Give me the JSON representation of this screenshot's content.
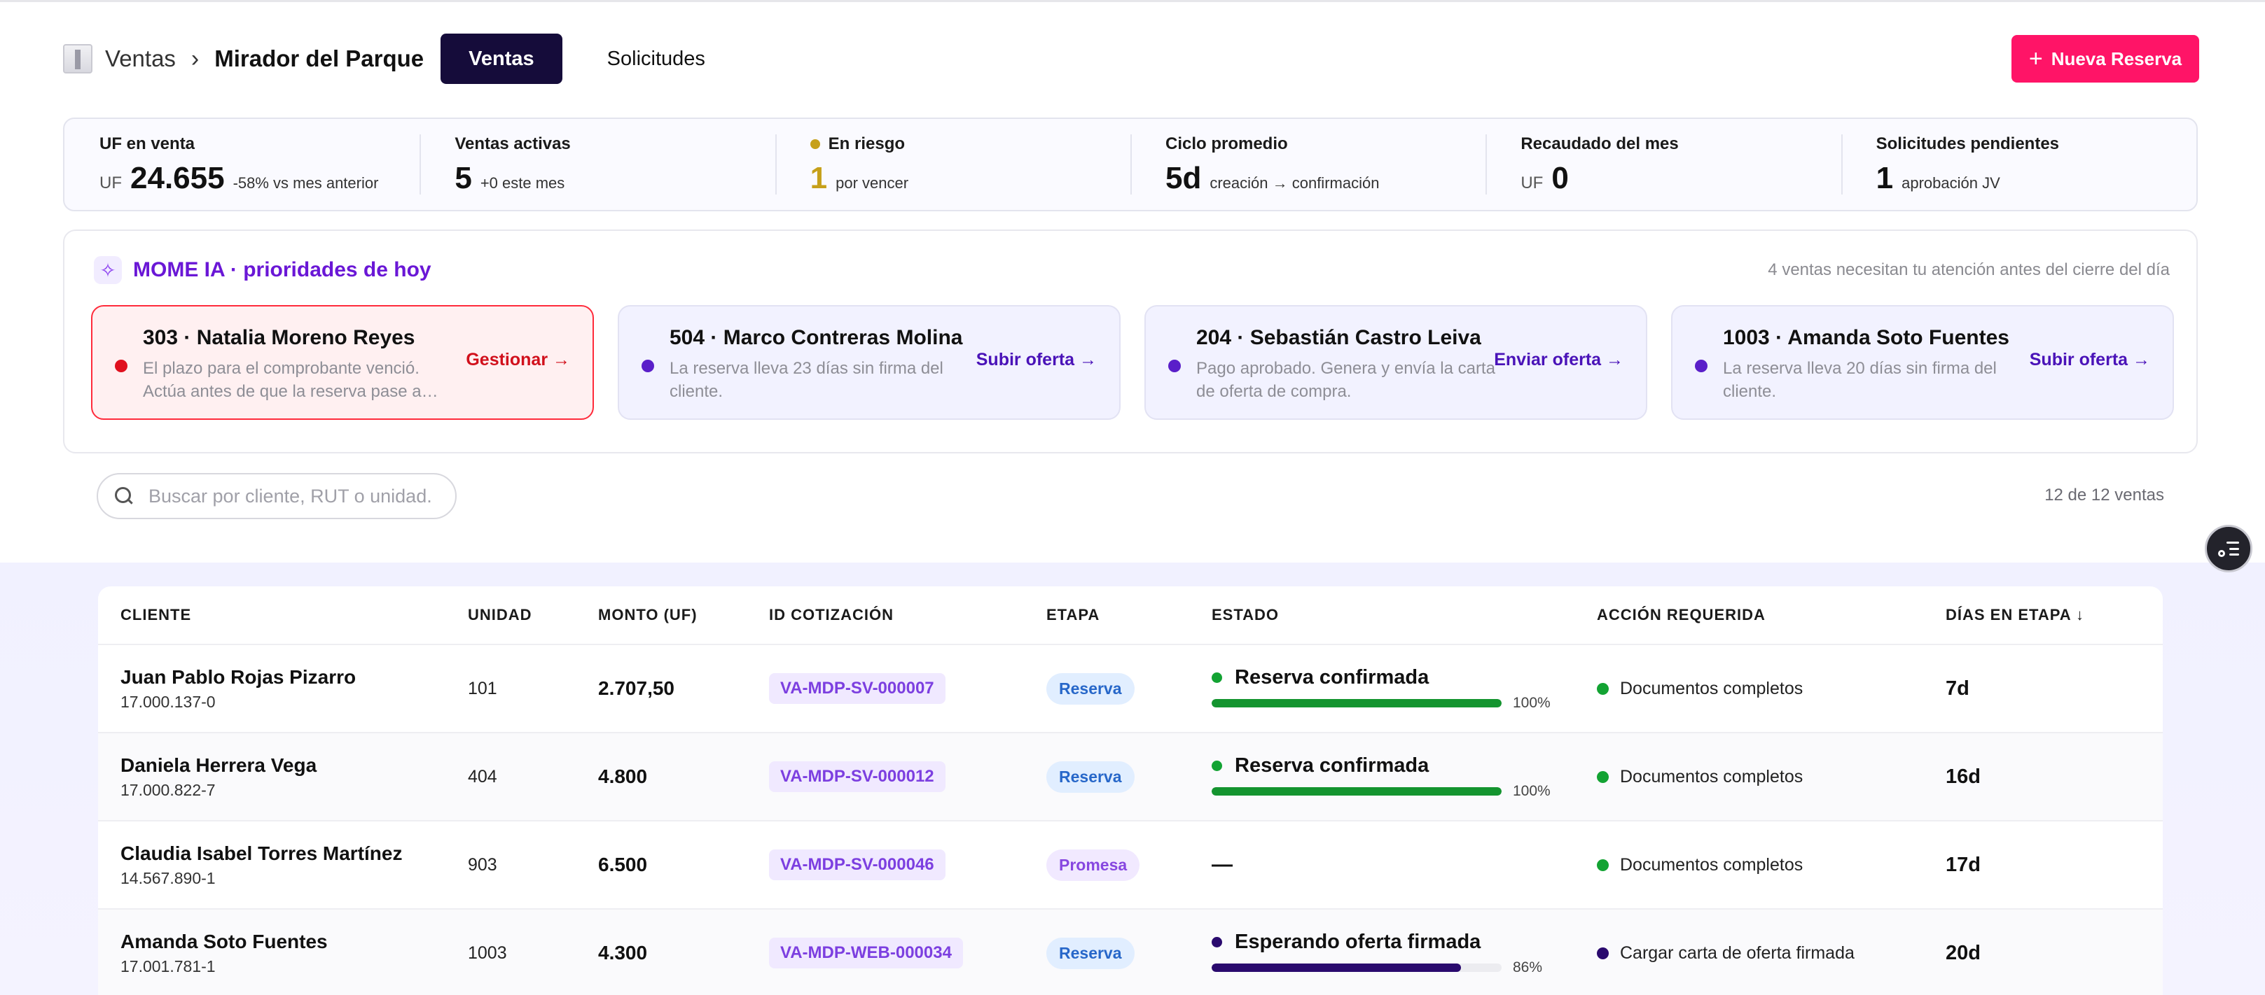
{
  "header": {
    "breadcrumb_root": "Ventas",
    "breadcrumb_sep": "›",
    "breadcrumb_current": "Mirador del Parque",
    "tabs": [
      {
        "label": "Ventas",
        "active": true
      },
      {
        "label": "Solicitudes",
        "active": false
      }
    ],
    "new_button_icon": "+",
    "new_button_label": "Nueva Reserva"
  },
  "kpis": [
    {
      "label": "UF en venta",
      "prefix": "UF",
      "value": "24.655",
      "sub": "-58% vs mes anterior"
    },
    {
      "label": "Ventas activas",
      "prefix": "",
      "value": "5",
      "sub": "+0 este mes"
    },
    {
      "label": "En riesgo",
      "prefix": "",
      "value": "1",
      "sub": "por vencer",
      "dot_color": "#c6a01a"
    },
    {
      "label": "Ciclo promedio",
      "prefix": "",
      "value": "5d",
      "sub": "creación → confirmación"
    },
    {
      "label": "Recaudado del mes",
      "prefix": "UF",
      "value": "0",
      "sub": ""
    },
    {
      "label": "Solicitudes pendientes",
      "prefix": "",
      "value": "1",
      "sub": "aprobación JV"
    }
  ],
  "ai": {
    "icon": "sparkles-icon",
    "title": "MOME IA · prioridades de hoy",
    "note": "4 ventas necesitan tu atención antes del cierre del día",
    "cards": [
      {
        "title": "303 · Natalia Moreno Reyes",
        "desc": "El plazo para el comprobante venció. Actúa antes de que la reserva pase a…",
        "action": "Gestionar →",
        "urgent": true
      },
      {
        "title": "504 · Marco Contreras Molina",
        "desc": "La reserva lleva 23 días sin firma del cliente.",
        "action": "Subir oferta →",
        "urgent": false
      },
      {
        "title": "204 · Sebastián Castro Leiva",
        "desc": "Pago aprobado. Genera y envía la carta de oferta de compra.",
        "action": "Enviar oferta →",
        "urgent": false
      },
      {
        "title": "1003 · Amanda Soto Fuentes",
        "desc": "La reserva lleva 20 días sin firma del cliente.",
        "action": "Subir oferta →",
        "urgent": false
      }
    ]
  },
  "search": {
    "placeholder": "Buscar por cliente, RUT o unidad.",
    "value": ""
  },
  "count_label": "12 de 12 ventas",
  "table": {
    "columns": [
      "CLIENTE",
      "UNIDAD",
      "MONTO (UF)",
      "ID COTIZACIÓN",
      "ETAPA",
      "ESTADO",
      "ACCIÓN REQUERIDA",
      "DÍAS EN ETAPA ↓"
    ],
    "rows": [
      {
        "name": "Juan Pablo Rojas Pizarro",
        "rut": "17.000.137-0",
        "unit": "101",
        "amount": "2.707,50",
        "quote_id": "VA-MDP-SV-000007",
        "stage": "Reserva",
        "state": "Reserva confirmada",
        "progress": 100,
        "progress_label": "100%",
        "state_color": "green",
        "action": "Documentos completos",
        "action_color": "green",
        "days": "7d"
      },
      {
        "name": "Daniela Herrera Vega",
        "rut": "17.000.822-7",
        "unit": "404",
        "amount": "4.800",
        "quote_id": "VA-MDP-SV-000012",
        "stage": "Reserva",
        "state": "Reserva confirmada",
        "progress": 100,
        "progress_label": "100%",
        "state_color": "green",
        "action": "Documentos completos",
        "action_color": "green",
        "days": "16d"
      },
      {
        "name": "Claudia Isabel Torres Martínez",
        "rut": "14.567.890-1",
        "unit": "903",
        "amount": "6.500",
        "quote_id": "VA-MDP-SV-000046",
        "stage": "Promesa",
        "state": "—",
        "progress": null,
        "progress_label": "",
        "state_color": "",
        "action": "Documentos completos",
        "action_color": "green",
        "days": "17d"
      },
      {
        "name": "Amanda Soto Fuentes",
        "rut": "17.001.781-1",
        "unit": "1003",
        "amount": "4.300",
        "quote_id": "VA-MDP-WEB-000034",
        "stage": "Reserva",
        "state": "Esperando oferta firmada",
        "progress": 86,
        "progress_label": "86%",
        "state_color": "purple",
        "action": "Cargar carta de oferta firmada",
        "action_color": "purple",
        "days": "20d"
      }
    ]
  },
  "colors": {
    "accent": "#ff1467",
    "nav_active": "#150c3a",
    "ai_purple": "#6a17d6",
    "urgent_red": "#e0101e",
    "success_green": "#13a333"
  },
  "floating_button_icon": "filter-list-icon"
}
